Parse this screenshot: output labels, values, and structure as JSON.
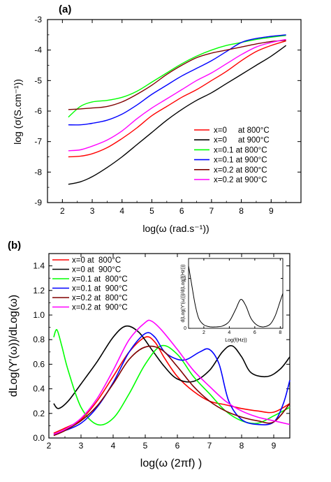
{
  "chart_data": [
    {
      "type": "line",
      "panel_label": "(a)",
      "xlabel": "log(ω (rad.s⁻¹))",
      "ylabel": "log (σ(S.cm⁻¹))",
      "xlim": [
        1.5,
        10
      ],
      "ylim": [
        -9,
        -3
      ],
      "xticks": [
        "2",
        "3",
        "4",
        "5",
        "6",
        "7",
        "8",
        "9"
      ],
      "yticks": [
        "-3",
        "-4",
        "-5",
        "-6",
        "-7",
        "-8",
        "-9"
      ],
      "legend_position": "lower-right",
      "series": [
        {
          "name": "x=0     at 800°C",
          "color": "#ff0000",
          "x": [
            2.2,
            2.6,
            3.0,
            3.5,
            4.0,
            4.5,
            5.0,
            5.5,
            6.0,
            6.5,
            7.0,
            7.5,
            8.0,
            8.5,
            9.0,
            9.5
          ],
          "y": [
            -7.5,
            -7.48,
            -7.4,
            -7.2,
            -6.9,
            -6.55,
            -6.15,
            -5.85,
            -5.55,
            -5.3,
            -5.0,
            -4.7,
            -4.35,
            -4.05,
            -3.85,
            -3.7
          ]
        },
        {
          "name": "x=0     at 900°C",
          "color": "#000000",
          "x": [
            2.2,
            2.6,
            3.0,
            3.5,
            4.0,
            4.5,
            5.0,
            5.5,
            6.0,
            6.5,
            7.0,
            7.5,
            8.0,
            8.5,
            9.0,
            9.5
          ],
          "y": [
            -8.4,
            -8.32,
            -8.15,
            -7.85,
            -7.5,
            -7.1,
            -6.7,
            -6.3,
            -5.95,
            -5.65,
            -5.4,
            -5.1,
            -4.8,
            -4.5,
            -4.2,
            -3.85
          ]
        },
        {
          "name": "x=0.1 at 800°C",
          "color": "#00ff00",
          "x": [
            2.2,
            2.6,
            3.0,
            3.5,
            4.0,
            4.5,
            5.0,
            5.5,
            6.0,
            6.5,
            7.0,
            7.5,
            8.0,
            8.5,
            9.0,
            9.5
          ],
          "y": [
            -6.2,
            -5.85,
            -5.7,
            -5.65,
            -5.55,
            -5.35,
            -5.05,
            -4.75,
            -4.45,
            -4.2,
            -4.0,
            -3.85,
            -3.75,
            -3.65,
            -3.58,
            -3.52
          ]
        },
        {
          "name": "x=0.1 at 900°C",
          "color": "#0000ff",
          "x": [
            2.2,
            2.6,
            3.0,
            3.5,
            4.0,
            4.5,
            5.0,
            5.5,
            6.0,
            6.5,
            7.0,
            7.5,
            8.0,
            8.5,
            9.0,
            9.5
          ],
          "y": [
            -6.45,
            -6.45,
            -6.4,
            -6.3,
            -6.1,
            -5.8,
            -5.45,
            -5.15,
            -4.85,
            -4.6,
            -4.35,
            -4.05,
            -3.75,
            -3.62,
            -3.55,
            -3.5
          ]
        },
        {
          "name": "x=0.2 at 800°C",
          "color": "#800000",
          "x": [
            2.2,
            2.6,
            3.0,
            3.5,
            4.0,
            4.5,
            5.0,
            5.5,
            6.0,
            6.5,
            7.0,
            7.5,
            8.0,
            8.5,
            9.0,
            9.5
          ],
          "y": [
            -5.95,
            -5.93,
            -5.9,
            -5.85,
            -5.7,
            -5.45,
            -5.15,
            -4.8,
            -4.5,
            -4.25,
            -4.1,
            -4.0,
            -3.9,
            -3.8,
            -3.72,
            -3.68
          ]
        },
        {
          "name": "x=0.2 at 900°C",
          "color": "#ff00ff",
          "x": [
            2.2,
            2.6,
            3.0,
            3.5,
            4.0,
            4.5,
            5.0,
            5.5,
            6.0,
            6.5,
            7.0,
            7.5,
            8.0,
            8.5,
            9.0,
            9.5
          ],
          "y": [
            -7.3,
            -7.27,
            -7.15,
            -6.95,
            -6.65,
            -6.25,
            -5.9,
            -5.6,
            -5.3,
            -5.0,
            -4.75,
            -4.45,
            -4.15,
            -3.9,
            -3.75,
            -3.65
          ]
        }
      ]
    },
    {
      "type": "line",
      "panel_label": "(b)",
      "xlabel": "log(ω (2πf) )",
      "ylabel": "dLog(Y'(ω))/dLog(ω)",
      "xlim": [
        2.0,
        9.5
      ],
      "ylim": [
        0.0,
        1.5
      ],
      "xticks": [
        "2",
        "3",
        "4",
        "5",
        "6",
        "7",
        "8",
        "9"
      ],
      "yticks": [
        "0.0",
        "0.2",
        "0.4",
        "0.6",
        "0.8",
        "1.0",
        "1.2",
        "1.4"
      ],
      "legend_position": "top-left",
      "series": [
        {
          "name": "x=0 at  800°C",
          "color": "#ff0000",
          "x": [
            2.15,
            2.5,
            3.0,
            3.5,
            4.0,
            4.5,
            5.0,
            5.3,
            5.6,
            6.0,
            6.5,
            7.0,
            7.5,
            8.0,
            8.5,
            9.0,
            9.5
          ],
          "y": [
            0.04,
            0.08,
            0.15,
            0.3,
            0.5,
            0.7,
            0.82,
            0.78,
            0.65,
            0.5,
            0.38,
            0.3,
            0.27,
            0.24,
            0.22,
            0.21,
            0.28
          ]
        },
        {
          "name": "x=0 at  900°C",
          "color": "#000000",
          "x": [
            2.15,
            2.3,
            2.6,
            3.0,
            3.5,
            4.0,
            4.4,
            4.8,
            5.2,
            5.6,
            6.0,
            6.5,
            7.0,
            7.4,
            7.7,
            8.0,
            8.3,
            8.8,
            9.2,
            9.5
          ],
          "y": [
            0.28,
            0.24,
            0.3,
            0.44,
            0.62,
            0.82,
            0.91,
            0.86,
            0.72,
            0.58,
            0.48,
            0.46,
            0.55,
            0.7,
            0.75,
            0.66,
            0.53,
            0.5,
            0.56,
            0.66
          ]
        },
        {
          "name": "x=0.1 at  800°C",
          "color": "#00ff00",
          "x": [
            2.15,
            2.25,
            2.4,
            2.6,
            3.0,
            3.5,
            4.0,
            4.5,
            5.0,
            5.5,
            6.0,
            6.5,
            7.0,
            7.5,
            8.0,
            8.5,
            9.0,
            9.5
          ],
          "y": [
            0.82,
            0.88,
            0.75,
            0.55,
            0.25,
            0.11,
            0.16,
            0.36,
            0.6,
            0.75,
            0.68,
            0.5,
            0.36,
            0.22,
            0.14,
            0.12,
            0.18,
            0.25
          ]
        },
        {
          "name": "x=0.1 at  900°C",
          "color": "#0000ff",
          "x": [
            2.15,
            2.5,
            3.0,
            3.5,
            4.0,
            4.5,
            5.0,
            5.3,
            5.6,
            6.0,
            6.3,
            6.7,
            7.0,
            7.3,
            7.6,
            8.0,
            8.5,
            9.0,
            9.3,
            9.5
          ],
          "y": [
            0.03,
            0.06,
            0.12,
            0.25,
            0.45,
            0.7,
            0.85,
            0.82,
            0.7,
            0.64,
            0.64,
            0.7,
            0.72,
            0.6,
            0.3,
            0.15,
            0.11,
            0.13,
            0.28,
            0.47
          ]
        },
        {
          "name": "x=0.2 at  800°C",
          "color": "#800000",
          "x": [
            2.15,
            2.5,
            3.0,
            3.5,
            4.0,
            4.5,
            5.0,
            5.5,
            6.0,
            6.5,
            7.0,
            7.5,
            8.0,
            8.5,
            9.0,
            9.5
          ],
          "y": [
            0.02,
            0.06,
            0.14,
            0.26,
            0.44,
            0.64,
            0.74,
            0.72,
            0.58,
            0.42,
            0.3,
            0.22,
            0.17,
            0.14,
            0.13,
            0.28
          ]
        },
        {
          "name": "x=0.2 at  900°C",
          "color": "#ff00ff",
          "x": [
            2.15,
            2.5,
            3.0,
            3.5,
            4.0,
            4.5,
            5.0,
            5.2,
            5.5,
            6.0,
            6.5,
            7.0,
            7.5,
            8.0,
            8.5,
            9.0,
            9.5
          ],
          "y": [
            0.03,
            0.07,
            0.16,
            0.32,
            0.55,
            0.8,
            0.94,
            0.95,
            0.88,
            0.72,
            0.55,
            0.42,
            0.3,
            0.22,
            0.17,
            0.14,
            0.11
          ]
        }
      ],
      "inset": {
        "type": "line",
        "xlabel": "Log(f(Hz))",
        "ylabel": "d(Log(Y'(ω)))/d(Log(f(Hz)))",
        "xlim": [
          0.8,
          8.2
        ],
        "ylim": [
          0.0,
          1.4
        ],
        "xticks": [
          "2",
          "4",
          "6",
          "8"
        ],
        "yticks": [
          "0",
          "1"
        ],
        "series": [
          {
            "name": "",
            "color": "#000000",
            "x": [
              0.8,
              1.0,
              1.3,
              1.6,
              2.0,
              2.5,
              3.0,
              3.5,
              4.0,
              4.5,
              4.9,
              5.3,
              5.7,
              6.2,
              6.7,
              7.2,
              7.6,
              8.0,
              8.2
            ],
            "y": [
              1.25,
              0.95,
              0.5,
              0.2,
              0.07,
              0.03,
              0.03,
              0.05,
              0.14,
              0.38,
              0.58,
              0.45,
              0.2,
              0.06,
              0.03,
              0.08,
              0.25,
              0.55,
              0.7
            ]
          }
        ]
      }
    }
  ]
}
